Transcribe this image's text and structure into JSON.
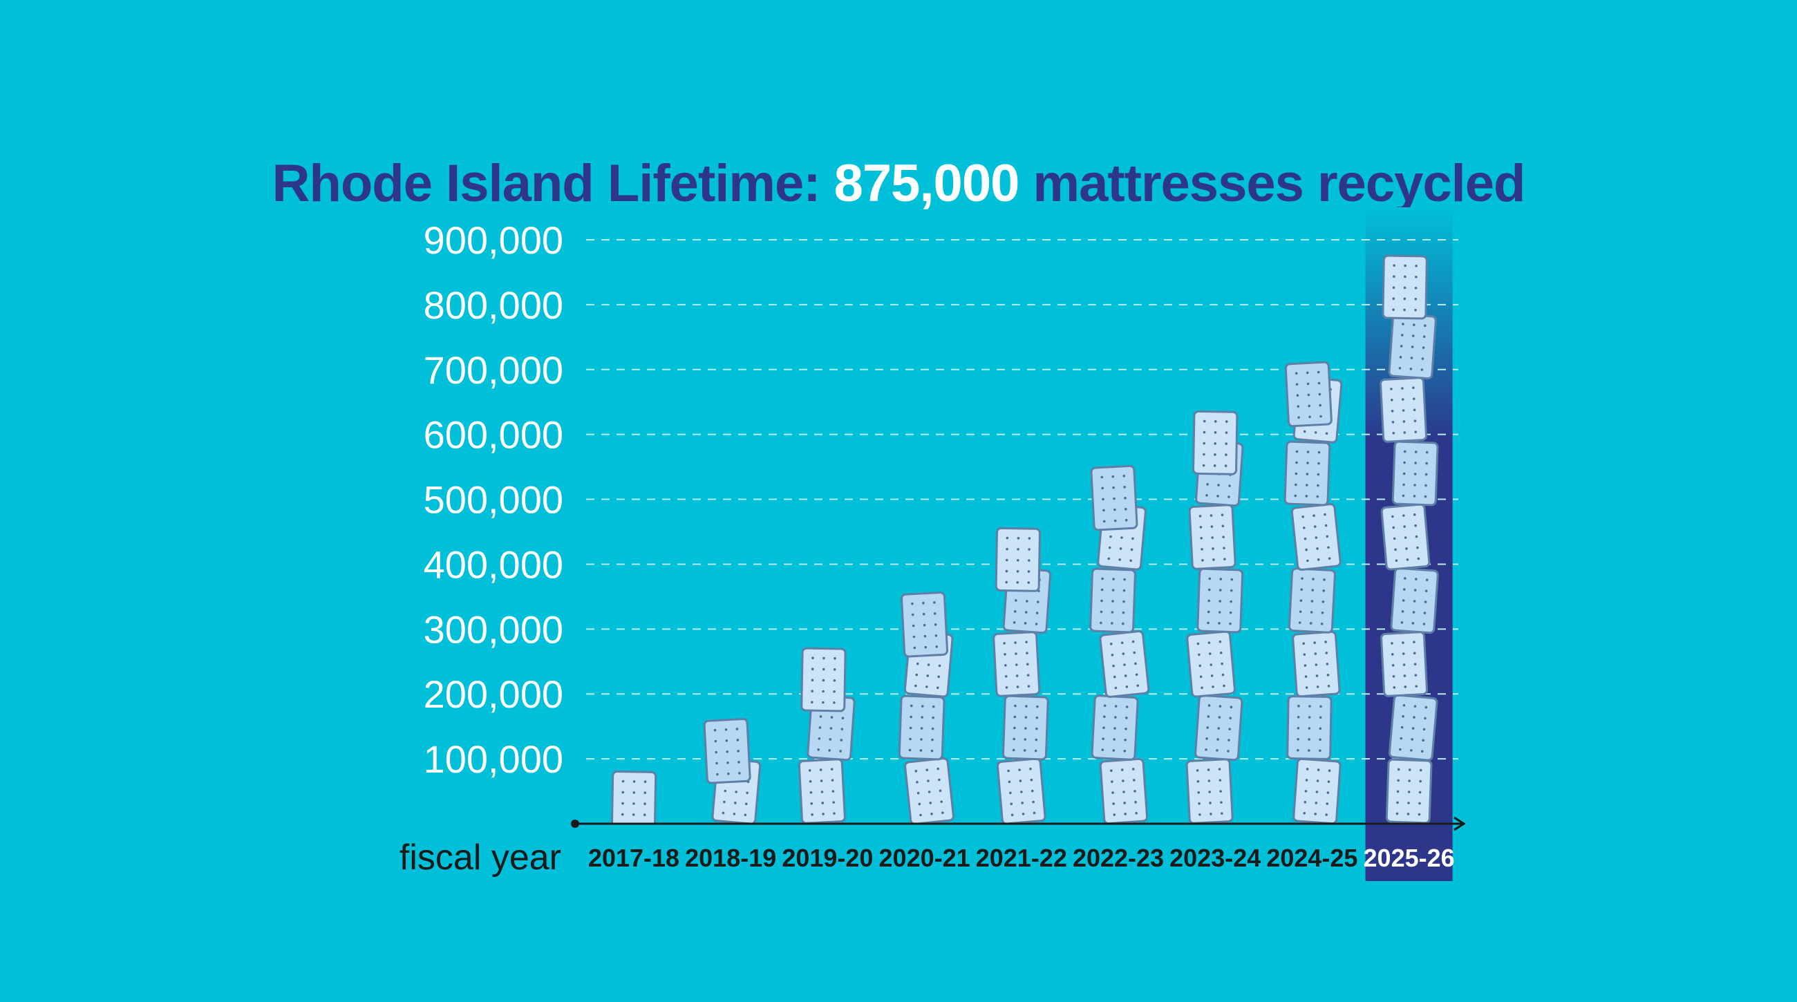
{
  "colors": {
    "background": "#00BFD8",
    "title": "#2D3689",
    "title_highlight": "#FFFFFF",
    "highlight_column": "#2D3689",
    "axis": "#1A1A1A",
    "tick_text": "#FFFFFF",
    "grid": "#B9EEF6",
    "mattress_fill": "#CDE3F7",
    "mattress_fill_alt": "#B7D7F2",
    "mattress_stroke": "#5E7FA6",
    "mattress_dot": "#4D6C93"
  },
  "title": {
    "prefix": "Rhode Island Lifetime: ",
    "highlight": "875,000",
    "suffix": " mattresses recycled"
  },
  "chart_data": {
    "type": "bar",
    "mark": "stacked mattress icons",
    "title": "Rhode Island Lifetime: 875,000 mattresses recycled",
    "xlabel": "fiscal year",
    "ylabel": "",
    "categories": [
      "2017-18",
      "2018-19",
      "2019-20",
      "2020-21",
      "2021-22",
      "2022-23",
      "2023-24",
      "2024-25",
      "2025-26"
    ],
    "values": [
      80000,
      160000,
      270000,
      355000,
      455000,
      550000,
      635000,
      710000,
      875000
    ],
    "ylim": [
      0,
      900000
    ],
    "yticks": [
      100000,
      200000,
      300000,
      400000,
      500000,
      600000,
      700000,
      800000,
      900000
    ],
    "ytick_labels": [
      "100,000",
      "200,000",
      "300,000",
      "400,000",
      "500,000",
      "600,000",
      "700,000",
      "800,000",
      "900,000"
    ],
    "highlighted_category": "2025-26",
    "grid": true,
    "legend": "none"
  }
}
